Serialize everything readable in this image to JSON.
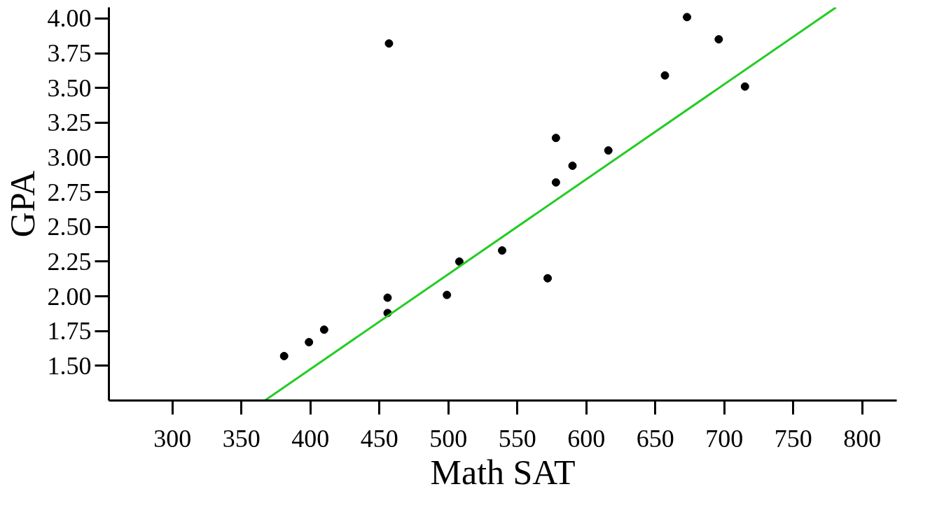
{
  "chart_data": {
    "type": "scatter",
    "xlabel": "Math SAT",
    "ylabel": "GPA",
    "xlim": [
      254,
      825
    ],
    "ylim": [
      1.25,
      4.08
    ],
    "xticks": [
      300,
      350,
      400,
      450,
      500,
      550,
      600,
      650,
      700,
      750,
      800
    ],
    "yticks": [
      {
        "value": 1.5,
        "label": "1.50"
      },
      {
        "value": 1.75,
        "label": "1.75"
      },
      {
        "value": 2.0,
        "label": "2.00"
      },
      {
        "value": 2.25,
        "label": "2.25"
      },
      {
        "value": 2.5,
        "label": "2.50"
      },
      {
        "value": 2.75,
        "label": "2.75"
      },
      {
        "value": 3.0,
        "label": "3.00"
      },
      {
        "value": 3.25,
        "label": "3.25"
      },
      {
        "value": 3.5,
        "label": "3.50"
      },
      {
        "value": 3.75,
        "label": "3.75"
      },
      {
        "value": 4.0,
        "label": "4.00"
      }
    ],
    "grid": false,
    "series": [
      {
        "marker": "circle",
        "color": "#000000",
        "x": [
          381,
          399,
          410,
          456,
          456,
          457,
          499,
          508,
          539,
          572,
          578,
          578,
          590,
          616,
          657,
          673,
          696,
          715
        ],
        "values": [
          1.57,
          1.67,
          1.76,
          1.99,
          1.88,
          3.82,
          2.01,
          2.25,
          2.33,
          2.13,
          3.14,
          2.82,
          2.94,
          3.05,
          3.59,
          4.01,
          3.85,
          3.51
        ]
      },
      {
        "type": "line",
        "color": "#22cc22",
        "x": [
          367,
          781
        ],
        "values": [
          1.25,
          4.08
        ]
      }
    ]
  }
}
